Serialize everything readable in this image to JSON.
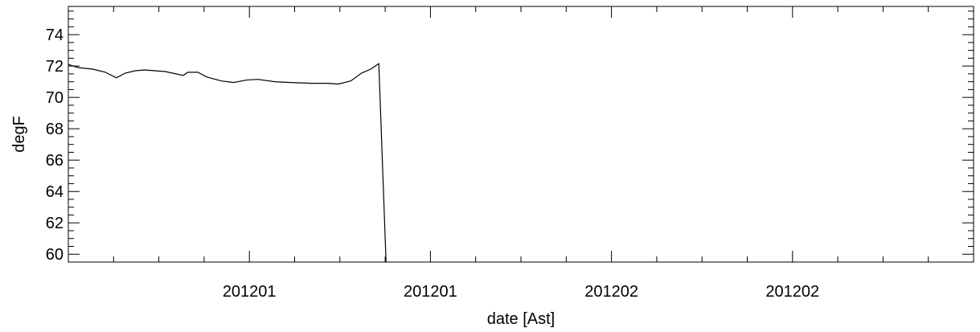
{
  "chart_data": {
    "type": "line",
    "title": "",
    "xlabel": "date [Ast]",
    "ylabel": "degF",
    "ylim": [
      59.5,
      75.8
    ],
    "xlim": [
      0,
      100
    ],
    "x_ticks": [
      {
        "pos": 20,
        "label": "201201"
      },
      {
        "pos": 40,
        "label": "201201"
      },
      {
        "pos": 60,
        "label": "201202"
      },
      {
        "pos": 80,
        "label": "201202"
      }
    ],
    "y_ticks": [
      {
        "value": 60,
        "label": "60"
      },
      {
        "value": 62,
        "label": "62"
      },
      {
        "value": 64,
        "label": "64"
      },
      {
        "value": 66,
        "label": "66"
      },
      {
        "value": 68,
        "label": "68"
      },
      {
        "value": 70,
        "label": "70"
      },
      {
        "value": 72,
        "label": "72"
      },
      {
        "value": 74,
        "label": "74"
      }
    ],
    "grid": false,
    "series": [
      {
        "color": "#000000",
        "x": [
          0,
          1.1,
          2.7,
          4.1,
          5.3,
          6.3,
          7.4,
          8.4,
          10.7,
          12.7,
          13.2,
          14.3,
          15.3,
          16.9,
          18.3,
          19.6,
          20.9,
          22.8,
          24.5,
          26.9,
          28.7,
          29.8,
          31.2,
          32.4,
          33.4,
          34.3,
          35.1
        ],
        "y": [
          72.1,
          71.9,
          71.8,
          71.6,
          71.25,
          71.55,
          71.7,
          71.75,
          71.65,
          71.4,
          71.6,
          71.6,
          71.3,
          71.05,
          70.95,
          71.1,
          71.15,
          71.0,
          70.95,
          70.9,
          70.9,
          70.85,
          71.05,
          71.55,
          71.8,
          72.15,
          59.5
        ]
      }
    ]
  }
}
